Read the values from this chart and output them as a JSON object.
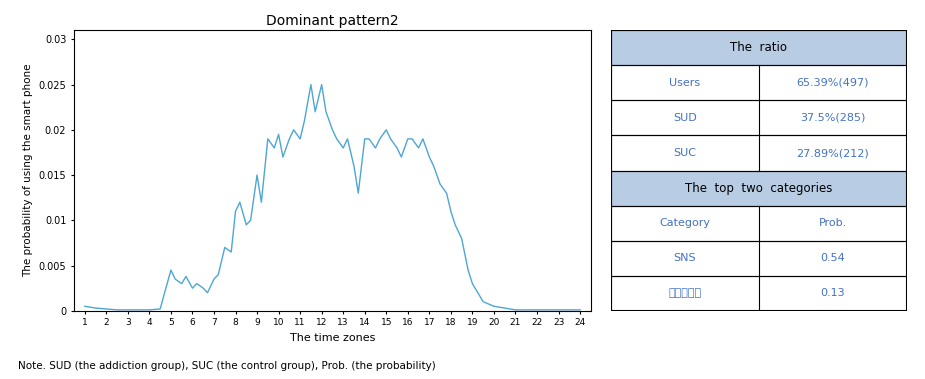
{
  "title": "Dominant pattern2",
  "xlabel": "The time zones",
  "ylabel": "The probability of using the smart phone",
  "xlim": [
    0.5,
    24.5
  ],
  "ylim": [
    0,
    0.031
  ],
  "xticks": [
    1,
    2,
    3,
    4,
    5,
    6,
    7,
    8,
    9,
    10,
    11,
    12,
    13,
    14,
    15,
    16,
    17,
    18,
    19,
    20,
    21,
    22,
    23,
    24
  ],
  "yticks": [
    0,
    0.005,
    0.01,
    0.015,
    0.02,
    0.025,
    0.03
  ],
  "line_color": "#4da6d4",
  "line_data_x": [
    1,
    1.5,
    2,
    2.5,
    3,
    3.5,
    4,
    4.5,
    5,
    5.2,
    5.5,
    5.7,
    6,
    6.2,
    6.5,
    6.7,
    7,
    7.2,
    7.5,
    7.8,
    8,
    8.2,
    8.5,
    8.7,
    9,
    9.2,
    9.5,
    9.8,
    10,
    10.2,
    10.5,
    10.7,
    11,
    11.2,
    11.5,
    11.7,
    12,
    12.2,
    12.5,
    12.7,
    13,
    13.2,
    13.5,
    13.7,
    14,
    14.2,
    14.5,
    14.7,
    15,
    15.2,
    15.5,
    15.7,
    16,
    16.2,
    16.5,
    16.7,
    17,
    17.2,
    17.5,
    17.8,
    18,
    18.2,
    18.5,
    18.8,
    19,
    19.5,
    20,
    20.5,
    21,
    21.5,
    22,
    22.5,
    23,
    23.5,
    24
  ],
  "line_data_y": [
    0.0005,
    0.0003,
    0.0002,
    0.0001,
    0.0001,
    0.0001,
    0.0001,
    0.0002,
    0.0045,
    0.0035,
    0.003,
    0.0038,
    0.0025,
    0.003,
    0.0025,
    0.002,
    0.0035,
    0.004,
    0.007,
    0.0065,
    0.011,
    0.012,
    0.0095,
    0.01,
    0.015,
    0.012,
    0.019,
    0.018,
    0.0195,
    0.017,
    0.019,
    0.02,
    0.019,
    0.021,
    0.025,
    0.022,
    0.025,
    0.022,
    0.02,
    0.019,
    0.018,
    0.019,
    0.016,
    0.013,
    0.019,
    0.019,
    0.018,
    0.019,
    0.02,
    0.019,
    0.018,
    0.017,
    0.019,
    0.019,
    0.018,
    0.019,
    0.017,
    0.016,
    0.014,
    0.013,
    0.011,
    0.0095,
    0.008,
    0.0045,
    0.003,
    0.001,
    0.0005,
    0.0003,
    0.0001,
    0.0001,
    0.0001,
    0.0001,
    0.0001,
    0.0001,
    0.0001
  ],
  "note": "Note. SUD (the addiction group), SUC (the control group), Prob. (the probability)",
  "table_header_bg": "#b8cce4",
  "table_subheader_bg": "#b8cce4",
  "table_cell_bg": "#ffffff",
  "table_header_text": "The  ratio",
  "table_rows_ratio": [
    [
      "Users",
      "65.39%(497)"
    ],
    [
      "SUD",
      "37.5%(285)"
    ],
    [
      "SUC",
      "27.89%(212)"
    ]
  ],
  "table_header2_text": "The  top  two  categories",
  "table_cols_top2": [
    "Category",
    "Prob."
  ],
  "table_rows_top2": [
    [
      "라이프스일",
      "0.13"
    ],
    [
      "SNS",
      "0.54"
    ]
  ],
  "outer_border_color": "#000000",
  "table_text_color": "#4472c4"
}
